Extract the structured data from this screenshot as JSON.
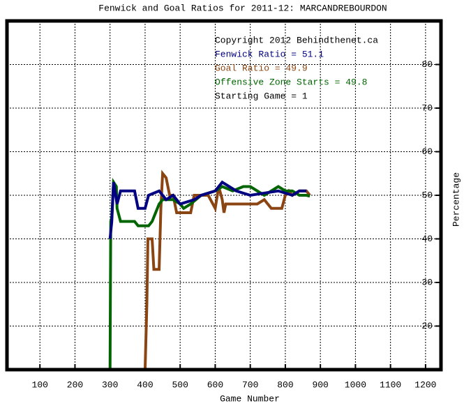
{
  "chart_data": {
    "type": "line",
    "title": "Fenwick and Goal Ratios for 2011-12: MARCANDREBOURDON",
    "x_label": "Game Number",
    "y_label": "Percentage",
    "annotations": [
      "Copyright 2012 Behindthenet.ca",
      "Fenwick Ratio = 51.1",
      "Goal Ratio = 49.9",
      "Offensive Zone Starts = 49.8",
      "Starting Game = 1"
    ],
    "annotation_colors": [
      "#000000",
      "#000080",
      "#8b4513",
      "#006400",
      "#000000"
    ],
    "xlim": [
      6,
      1244
    ],
    "ylim": [
      10,
      90
    ],
    "xticks": [
      100,
      200,
      300,
      400,
      500,
      600,
      700,
      800,
      900,
      1000,
      1100,
      1200
    ],
    "yticks": [
      20,
      30,
      40,
      50,
      60,
      70,
      80
    ],
    "grid": true,
    "series": [
      {
        "name": "Goal Ratio",
        "color": "#8b4513",
        "x": [
          400,
          405,
          408,
          420,
          425,
          440,
          445,
          450,
          460,
          470,
          480,
          490,
          530,
          540,
          580,
          600,
          610,
          620,
          625,
          630,
          720,
          740,
          760,
          790,
          800,
          810,
          820,
          840,
          860,
          870
        ],
        "values": [
          10,
          25,
          40,
          40,
          33,
          33,
          47,
          55,
          54,
          50,
          50,
          46,
          46,
          50,
          50,
          47,
          52,
          49,
          46,
          48,
          48,
          49,
          47,
          47,
          50,
          51,
          50,
          51,
          51,
          50
        ]
      },
      {
        "name": "Offensive Zone Starts",
        "color": "#006400",
        "x": [
          300,
          302,
          305,
          310,
          318,
          320,
          330,
          370,
          380,
          410,
          420,
          440,
          450,
          480,
          500,
          510,
          530,
          560,
          600,
          620,
          650,
          680,
          700,
          720,
          740,
          760,
          780,
          800,
          820,
          840,
          860,
          870
        ],
        "values": [
          10,
          44,
          45,
          53,
          52,
          47,
          44,
          44,
          43,
          43,
          44,
          48,
          49,
          49,
          48,
          47,
          48,
          50,
          51,
          52,
          51,
          52,
          52,
          51,
          50,
          51,
          52,
          51,
          51,
          50,
          50,
          49.8
        ]
      },
      {
        "name": "Fenwick Ratio",
        "color": "#000080",
        "x": [
          300,
          305,
          310,
          320,
          330,
          370,
          380,
          400,
          410,
          440,
          450,
          460,
          480,
          500,
          540,
          560,
          600,
          620,
          640,
          660,
          700,
          780,
          820,
          840,
          860
        ],
        "values": [
          40,
          44,
          53,
          48,
          51,
          51,
          47,
          47,
          50,
          51,
          50,
          49,
          50,
          48,
          49,
          50,
          51,
          53,
          52,
          51,
          50,
          51,
          50,
          51,
          51
        ]
      }
    ]
  }
}
